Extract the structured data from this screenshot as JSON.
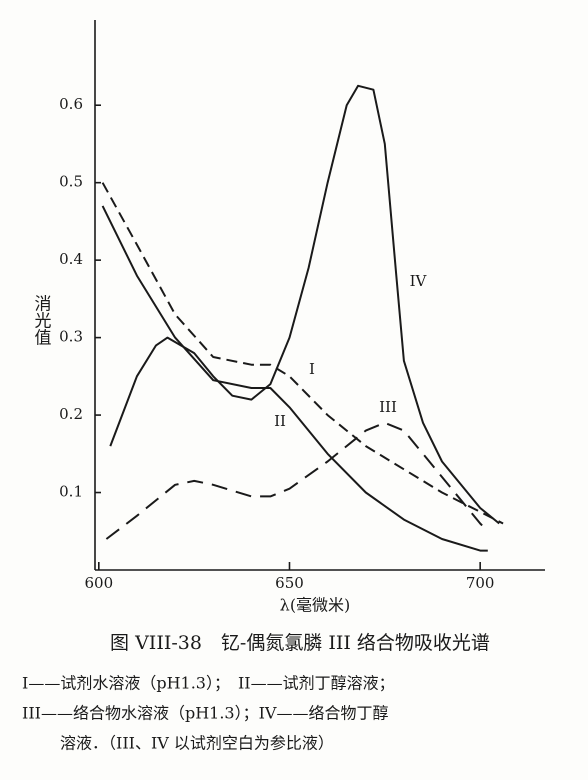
{
  "chart_data": {
    "type": "line",
    "y_label": "消光值",
    "x_label": "λ(毫微米)",
    "xlim": [
      599,
      717
    ],
    "xticks": [
      600,
      650,
      700
    ],
    "ylim": [
      0,
      0.71
    ],
    "yticks": [
      0.1,
      0.2,
      0.3,
      0.4,
      0.5,
      0.6
    ],
    "grid": false,
    "series": [
      {
        "name": "I",
        "color": "#1a1a1a",
        "style": "dashed",
        "x": [
          601,
          610,
          620,
          630,
          640,
          645,
          650,
          660,
          670,
          680,
          690,
          700,
          706
        ],
        "values": [
          0.5,
          0.42,
          0.33,
          0.275,
          0.265,
          0.265,
          0.25,
          0.2,
          0.16,
          0.13,
          0.1,
          0.075,
          0.06
        ]
      },
      {
        "name": "II",
        "color": "#1a1a1a",
        "style": "solid",
        "x": [
          601,
          610,
          620,
          630,
          640,
          645,
          650,
          660,
          670,
          680,
          690,
          700,
          702
        ],
        "values": [
          0.47,
          0.38,
          0.3,
          0.245,
          0.235,
          0.235,
          0.21,
          0.15,
          0.1,
          0.065,
          0.04,
          0.025,
          0.025
        ]
      },
      {
        "name": "III",
        "color": "#1a1a1a",
        "style": "long-dashed",
        "x": [
          602,
          610,
          620,
          625,
          630,
          640,
          645,
          650,
          660,
          670,
          675,
          680,
          690,
          700,
          702
        ],
        "values": [
          0.04,
          0.07,
          0.11,
          0.115,
          0.11,
          0.095,
          0.095,
          0.105,
          0.14,
          0.18,
          0.19,
          0.18,
          0.12,
          0.06,
          0.05
        ]
      },
      {
        "name": "IV",
        "color": "#1a1a1a",
        "style": "solid",
        "x": [
          603,
          610,
          615,
          618,
          625,
          630,
          635,
          640,
          645,
          650,
          655,
          660,
          665,
          668,
          672,
          675,
          678,
          680,
          685,
          690,
          700,
          705
        ],
        "values": [
          0.16,
          0.25,
          0.29,
          0.3,
          0.28,
          0.25,
          0.225,
          0.22,
          0.24,
          0.3,
          0.39,
          0.5,
          0.6,
          0.625,
          0.62,
          0.55,
          0.38,
          0.27,
          0.19,
          0.14,
          0.08,
          0.06
        ]
      }
    ]
  },
  "caption": {
    "title": "图 VIII-38　钇-偶氮氯膦 III 络合物吸收光谱",
    "notes": [
      "I——试剂水溶液（pH1.3）；　II——试剂丁醇溶液；",
      "III——络合物水溶液（pH1.3）；IV——络合物丁醇",
      "溶液．（III、IV 以试剂空白为参比液）"
    ]
  }
}
